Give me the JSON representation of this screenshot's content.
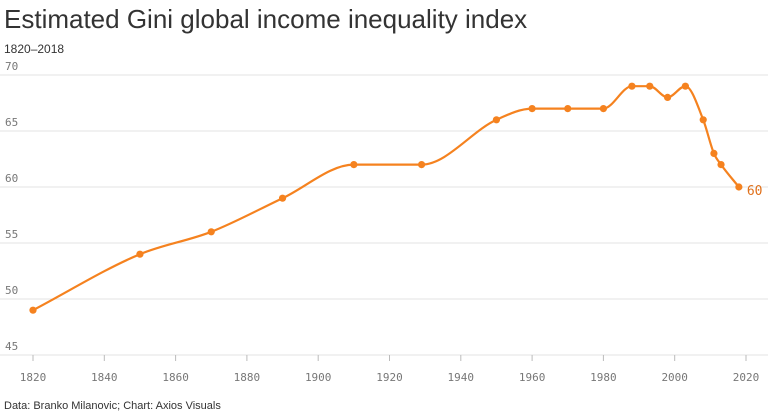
{
  "title": "Estimated Gini global income inequality index",
  "subtitle": "1820–2018",
  "source": "Data: Branko Milanovic; Chart: Axios Visuals",
  "colors": {
    "line": "#F5821F",
    "grid": "#E3E3E3",
    "tick_text": "#777777",
    "end_label": "#E0701A"
  },
  "chart_data": {
    "type": "line",
    "title": "Estimated Gini global income inequality index",
    "subtitle": "1820–2018",
    "xlabel": "",
    "ylabel": "",
    "xlim": [
      1820,
      2020
    ],
    "ylim": [
      45,
      70
    ],
    "x_ticks": [
      1820,
      1840,
      1860,
      1880,
      1900,
      1920,
      1940,
      1960,
      1980,
      2000,
      2020
    ],
    "y_ticks": [
      45,
      50,
      55,
      60,
      65,
      70
    ],
    "grid": true,
    "series": [
      {
        "x": [
          1820,
          1850,
          1870,
          1890,
          1910,
          1929,
          1950,
          1960,
          1970,
          1980,
          1988,
          1993,
          1998,
          2003,
          2008,
          2011,
          2013,
          2018
        ],
        "values": [
          49,
          54,
          56,
          59,
          62,
          62,
          66,
          67,
          67,
          67,
          69,
          69,
          68,
          69,
          66,
          63,
          62,
          60
        ]
      }
    ],
    "end_label": "60"
  }
}
